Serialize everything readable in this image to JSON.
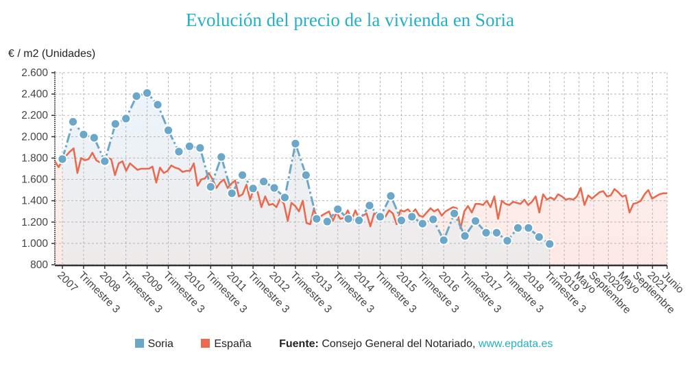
{
  "title": "Evolución del precio de la vivienda en Soria",
  "legend": {
    "items": [
      {
        "name": "Soria",
        "color": "#6aa7c9"
      },
      {
        "name": "España",
        "color": "#e96a4e"
      }
    ],
    "source_label": "Fuente:",
    "source_text": "Consejo General del Notariado,",
    "source_link": "www.epdata.es"
  },
  "chart_data": {
    "type": "line",
    "title": "Evolución del precio de la vivienda en Soria",
    "ylabel": "€ / m2 (Unidades)",
    "xlabel": "",
    "ylim": [
      800,
      2600
    ],
    "yticks": [
      800,
      1000,
      1200,
      1400,
      1600,
      1800,
      2000,
      2200,
      2400,
      2600
    ],
    "ytick_labels": [
      "800",
      "1.000",
      "1.200",
      "1.400",
      "1.600",
      "1.800",
      "2.000",
      "2.200",
      "2.400",
      "2.600"
    ],
    "grid": true,
    "legend_position": "bottom",
    "xtick_labels": [
      "2007",
      "Trimestre 3",
      "2008",
      "Trimestre 3",
      "2009",
      "Trimestre 3",
      "2010",
      "Trimestre 3",
      "2011",
      "Trimestre 3",
      "2012",
      "Trimestre 3",
      "2013",
      "Trimestre 3",
      "2014",
      "Trimestre 3",
      "2015",
      "Trimestre 3",
      "2016",
      "Trimestre 3",
      "2017",
      "Trimestre 3",
      "2018",
      "Trimestre 3",
      "2019",
      "Mayo",
      "Septiembre",
      "2020",
      "Mayo",
      "Septiembre",
      "2021",
      "Junio"
    ],
    "series": [
      {
        "name": "Soria",
        "color": "#6aa7c9",
        "frequency": "quarterly",
        "start": "2007 T1",
        "values": [
          1790,
          2140,
          2020,
          1990,
          1770,
          2120,
          2170,
          2380,
          2410,
          2300,
          2060,
          1860,
          1910,
          1895,
          1530,
          1810,
          1470,
          1640,
          1515,
          1580,
          1520,
          1430,
          1935,
          1640,
          1230,
          1205,
          1320,
          1230,
          1215,
          1355,
          1250,
          1445,
          1215,
          1250,
          1185,
          1225,
          1030,
          1280,
          1070,
          1210,
          1100,
          1100,
          1025,
          1145,
          1145,
          1060,
          995
        ]
      },
      {
        "name": "España",
        "color": "#e96a4e",
        "frequency": "monthly",
        "start": "2007-01",
        "values": [
          1770,
          1715,
          1780,
          1820,
          1860,
          1890,
          1660,
          1800,
          1780,
          1790,
          1850,
          1780,
          1760,
          1770,
          1800,
          1790,
          1640,
          1750,
          1770,
          1680,
          1750,
          1720,
          1690,
          1700,
          1700,
          1700,
          1720,
          1570,
          1710,
          1660,
          1680,
          1730,
          1710,
          1700,
          1670,
          1680,
          1680,
          1750,
          1540,
          1600,
          1610,
          1660,
          1600,
          1520,
          1570,
          1600,
          1520,
          1560,
          1590,
          1440,
          1460,
          1550,
          1410,
          1520,
          1480,
          1340,
          1440,
          1360,
          1370,
          1340,
          1420,
          1370,
          1210,
          1380,
          1350,
          1300,
          1400,
          1190,
          1180,
          1330,
          1190,
          1260,
          1280,
          1300,
          1210,
          1290,
          1230,
          1240,
          1310,
          1220,
          1310,
          1230,
          1260,
          1280,
          1160,
          1280,
          1260,
          1280,
          1250,
          1310,
          1280,
          1180,
          1310,
          1300,
          1320,
          1280,
          1320,
          1260,
          1250,
          1290,
          1330,
          1300,
          1320,
          1260,
          1300,
          1320,
          1340,
          1330,
          1140,
          1300,
          1350,
          1290,
          1370,
          1370,
          1360,
          1400,
          1340,
          1440,
          1230,
          1400,
          1370,
          1360,
          1390,
          1380,
          1370,
          1410,
          1360,
          1390,
          1440,
          1290,
          1460,
          1410,
          1430,
          1410,
          1460,
          1440,
          1410,
          1420,
          1410,
          1440,
          1520,
          1360,
          1450,
          1420,
          1450,
          1480,
          1490,
          1440,
          1450,
          1510,
          1480,
          1440,
          1450,
          1290,
          1370,
          1380,
          1400,
          1460,
          1500,
          1420,
          1440,
          1460,
          1470,
          1470
        ]
      }
    ]
  }
}
